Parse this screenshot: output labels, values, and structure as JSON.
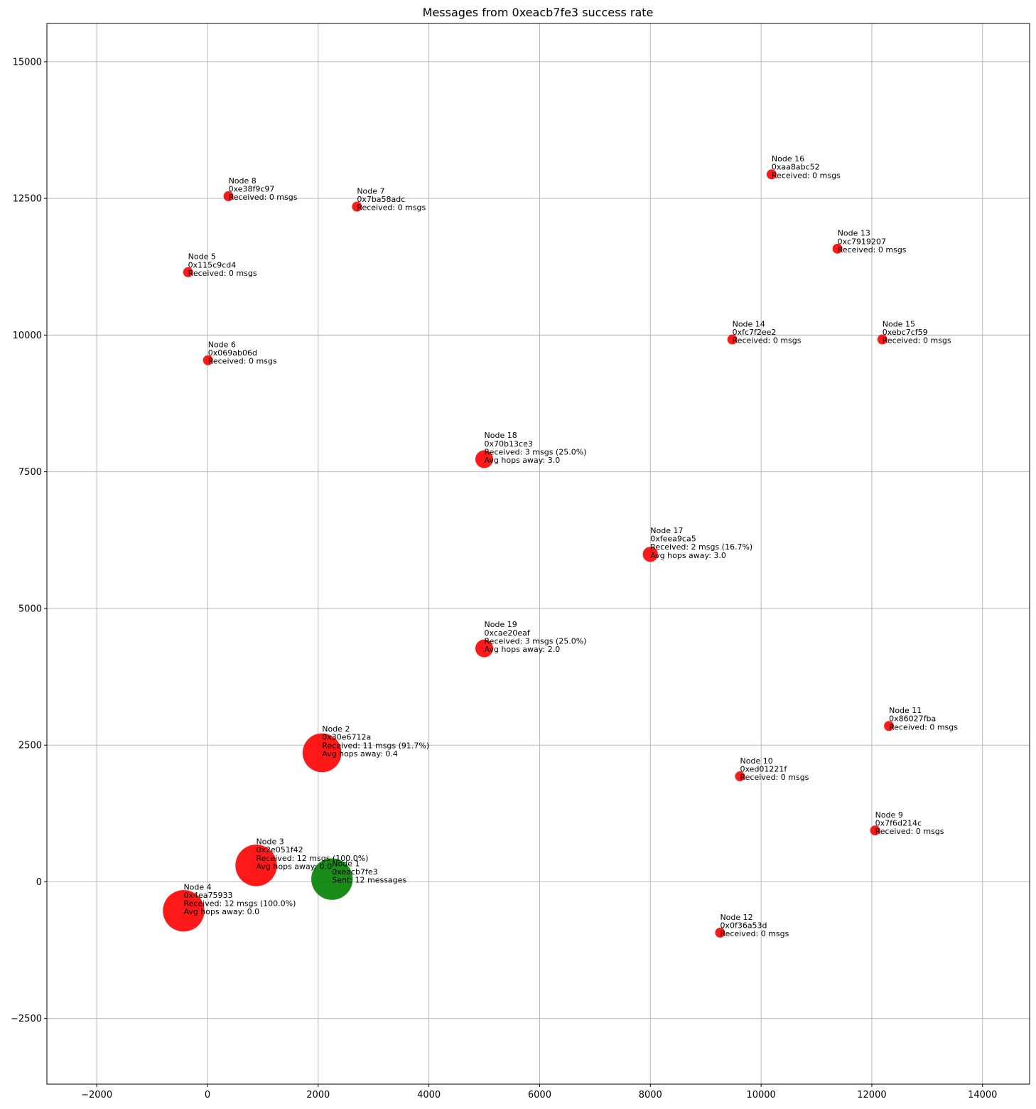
{
  "chart_data": {
    "type": "scatter",
    "title": "Messages from 0xeacb7fe3 success rate",
    "xlabel": "",
    "ylabel": "",
    "xlim": [
      -2900,
      14850
    ],
    "ylim": [
      -3700,
      15700
    ],
    "xticks": [
      -2000,
      0,
      2000,
      4000,
      6000,
      8000,
      10000,
      12000,
      14000
    ],
    "yticks": [
      -2500,
      0,
      2500,
      5000,
      7500,
      10000,
      12500,
      15000
    ],
    "grid": true,
    "colors": {
      "sender": "#008000",
      "receiver": "#ff0000"
    },
    "points": [
      {
        "node": "Node 1",
        "id": "0xeacb7fe3",
        "x": 2250,
        "y": 50,
        "role": "sender",
        "received": 12,
        "lines": [
          "Node 1",
          "0xeacb7fe3",
          "Sent: 12 messages"
        ]
      },
      {
        "node": "Node 2",
        "id": "0x30e6712a",
        "x": 2070,
        "y": 2360,
        "role": "receiver",
        "received": 11,
        "lines": [
          "Node 2",
          "0x30e6712a",
          "Received: 11 msgs (91.7%)",
          "Avg hops away: 0.4"
        ]
      },
      {
        "node": "Node 3",
        "id": "0x2e051f42",
        "x": 880,
        "y": 300,
        "role": "receiver",
        "received": 12,
        "lines": [
          "Node 3",
          "0x2e051f42",
          "Received: 12 msgs (100.0%)",
          "Avg hops away: 0.0"
        ]
      },
      {
        "node": "Node 4",
        "id": "0x4ea75933",
        "x": -430,
        "y": -530,
        "role": "receiver",
        "received": 12,
        "lines": [
          "Node 4",
          "0x4ea75933",
          "Received: 12 msgs (100.0%)",
          "Avg hops away: 0.0"
        ]
      },
      {
        "node": "Node 5",
        "id": "0x115c9cd4",
        "x": -350,
        "y": 11150,
        "role": "receiver",
        "received": 0,
        "lines": [
          "Node 5",
          "0x115c9cd4",
          "Received: 0 msgs"
        ]
      },
      {
        "node": "Node 6",
        "id": "0x069ab06d",
        "x": 10,
        "y": 9540,
        "role": "receiver",
        "received": 0,
        "lines": [
          "Node 6",
          "0x069ab06d",
          "Received: 0 msgs"
        ]
      },
      {
        "node": "Node 7",
        "id": "0x7ba58adc",
        "x": 2700,
        "y": 12350,
        "role": "receiver",
        "received": 0,
        "lines": [
          "Node 7",
          "0x7ba58adc",
          "Received: 0 msgs"
        ]
      },
      {
        "node": "Node 8",
        "id": "0xe38f9c97",
        "x": 380,
        "y": 12540,
        "role": "receiver",
        "received": 0,
        "lines": [
          "Node 8",
          "0xe38f9c97",
          "Received: 0 msgs"
        ]
      },
      {
        "node": "Node 9",
        "id": "0x7f6d214c",
        "x": 12060,
        "y": 940,
        "role": "receiver",
        "received": 0,
        "lines": [
          "Node 9",
          "0x7f6d214c",
          "Received: 0 msgs"
        ]
      },
      {
        "node": "Node 10",
        "id": "0xed01221f",
        "x": 9620,
        "y": 1930,
        "role": "receiver",
        "received": 0,
        "lines": [
          "Node 10",
          "0xed01221f",
          "Received: 0 msgs"
        ]
      },
      {
        "node": "Node 11",
        "id": "0x86027fba",
        "x": 12310,
        "y": 2850,
        "role": "receiver",
        "received": 0,
        "lines": [
          "Node 11",
          "0x86027fba",
          "Received: 0 msgs"
        ]
      },
      {
        "node": "Node 12",
        "id": "0x0f36a53d",
        "x": 9260,
        "y": -930,
        "role": "receiver",
        "received": 0,
        "lines": [
          "Node 12",
          "0x0f36a53d",
          "Received: 0 msgs"
        ]
      },
      {
        "node": "Node 13",
        "id": "0xc7919207",
        "x": 11380,
        "y": 11580,
        "role": "receiver",
        "received": 0,
        "lines": [
          "Node 13",
          "0xc7919207",
          "Received: 0 msgs"
        ]
      },
      {
        "node": "Node 14",
        "id": "0xfc7f2ee2",
        "x": 9480,
        "y": 9920,
        "role": "receiver",
        "received": 0,
        "lines": [
          "Node 14",
          "0xfc7f2ee2",
          "Received: 0 msgs"
        ]
      },
      {
        "node": "Node 15",
        "id": "0xebc7cf59",
        "x": 12190,
        "y": 9920,
        "role": "receiver",
        "received": 0,
        "lines": [
          "Node 15",
          "0xebc7cf59",
          "Received: 0 msgs"
        ]
      },
      {
        "node": "Node 16",
        "id": "0xaa8abc52",
        "x": 10190,
        "y": 12940,
        "role": "receiver",
        "received": 0,
        "lines": [
          "Node 16",
          "0xaa8abc52",
          "Received: 0 msgs"
        ]
      },
      {
        "node": "Node 17",
        "id": "0xfeea9ca5",
        "x": 8000,
        "y": 5990,
        "role": "receiver",
        "received": 2,
        "lines": [
          "Node 17",
          "0xfeea9ca5",
          "Received: 2 msgs (16.7%)",
          "Avg hops away: 3.0"
        ]
      },
      {
        "node": "Node 18",
        "id": "0x70b13ce3",
        "x": 5000,
        "y": 7730,
        "role": "receiver",
        "received": 3,
        "lines": [
          "Node 18",
          "0x70b13ce3",
          "Received: 3 msgs (25.0%)",
          "Avg hops away: 3.0"
        ]
      },
      {
        "node": "Node 19",
        "id": "0xcae20eaf",
        "x": 5000,
        "y": 4270,
        "role": "receiver",
        "received": 3,
        "lines": [
          "Node 19",
          "0xcae20eaf",
          "Received: 3 msgs (25.0%)",
          "Avg hops away: 2.0"
        ]
      }
    ]
  }
}
